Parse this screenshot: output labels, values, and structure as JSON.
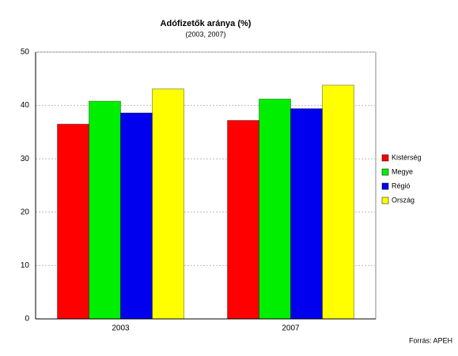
{
  "chart_data": {
    "type": "bar",
    "title": "Adófizetők aránya (%)",
    "subtitle": "(2003, 2007)",
    "categories": [
      "2003",
      "2007"
    ],
    "series": [
      {
        "name": "Kistérség",
        "color": "#ff0000",
        "values": [
          36.5,
          37.2
        ]
      },
      {
        "name": "Megye",
        "color": "#00ee00",
        "values": [
          40.8,
          41.2
        ]
      },
      {
        "name": "Régió",
        "color": "#0000ee",
        "values": [
          38.6,
          39.4
        ]
      },
      {
        "name": "Ország",
        "color": "#ffff00",
        "values": [
          43.1,
          43.8
        ]
      }
    ],
    "ylim": [
      0,
      50
    ],
    "yticks": [
      0,
      10,
      20,
      30,
      40,
      50
    ],
    "grid": true,
    "legend": "right",
    "source": "Forrás: APEH"
  }
}
